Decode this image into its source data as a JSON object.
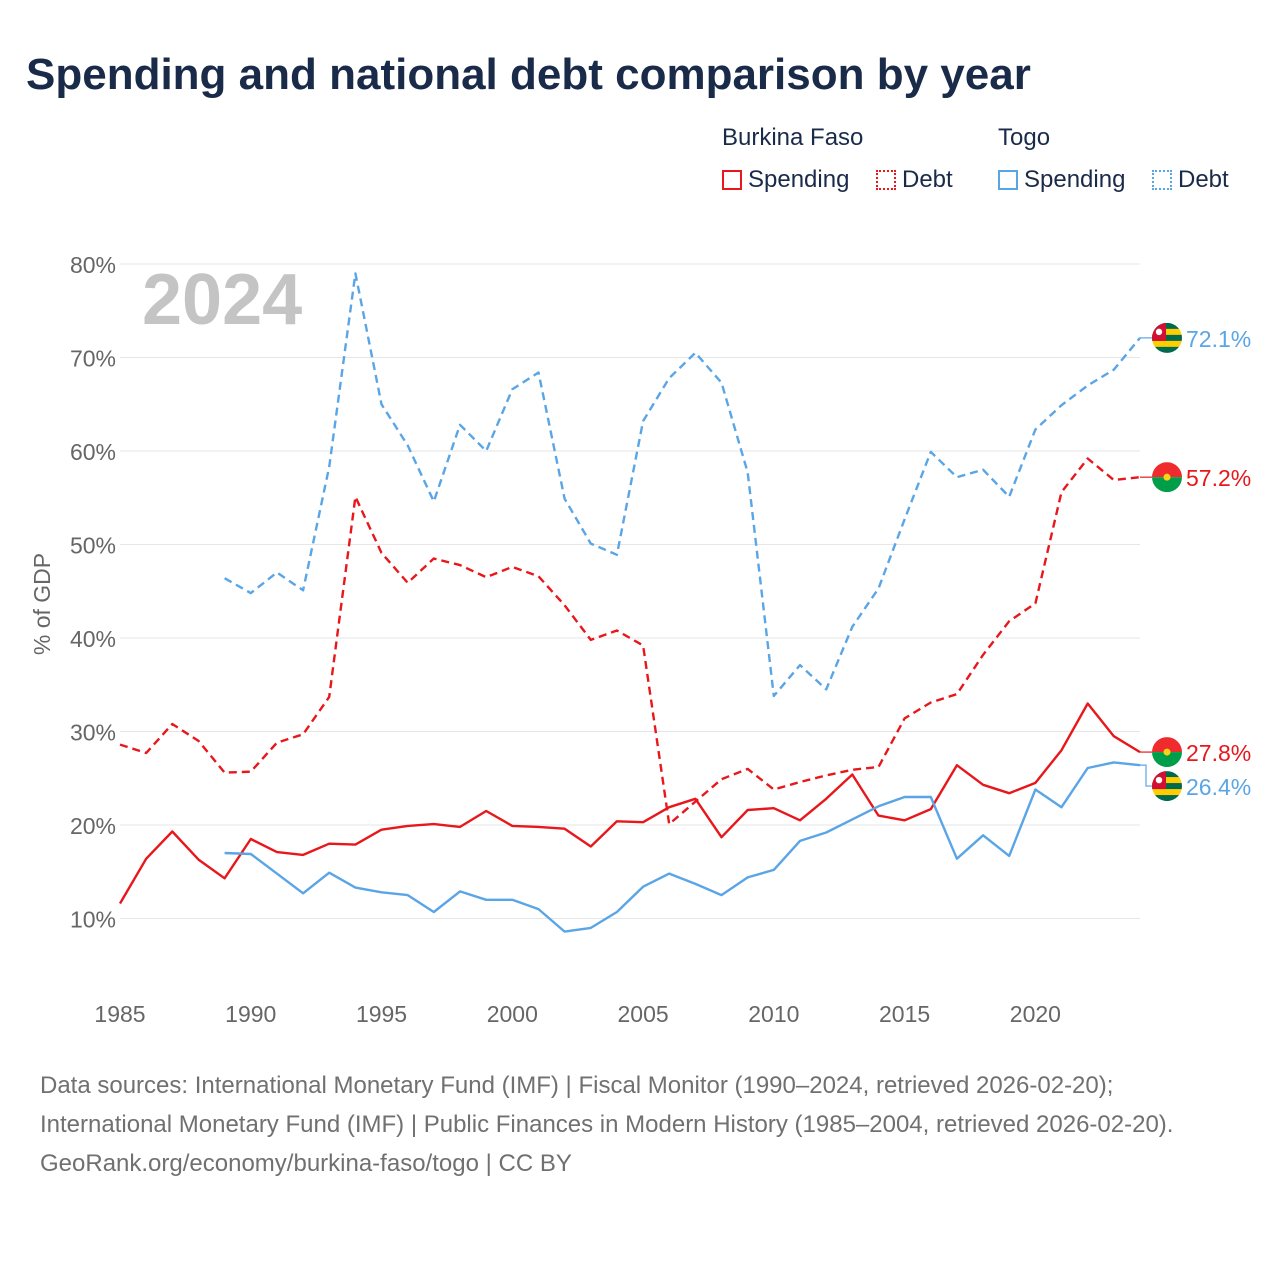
{
  "title": "Spending and national debt comparison by year",
  "legend": {
    "groups": [
      "Burkina Faso",
      "Togo"
    ],
    "bf_spending": "Spending",
    "bf_debt": "Debt",
    "tg_spending": "Spending",
    "tg_debt": "Debt"
  },
  "footer": {
    "sources": "Data sources: International Monetary Fund (IMF) | Fiscal Monitor (1990–2024, retrieved 2026-02-20); International Monetary Fund (IMF) | Public Finances in Modern History (1985–2004, retrieved 2026-02-20).",
    "credit": "GeoRank.org/economy/burkina-faso/togo | CC BY"
  },
  "colors": {
    "burkina": "#e8171b",
    "togo": "#5aa5e6",
    "grid": "#e6e6e6",
    "axis": "#666666"
  },
  "chart_data": {
    "type": "line",
    "ylabel": "% of GDP",
    "year_label": "2024",
    "ylim": [
      0,
      80
    ],
    "xlim": [
      1985,
      2024
    ],
    "x_ticks": [
      1985,
      1990,
      1995,
      2000,
      2005,
      2010,
      2015,
      2020
    ],
    "y_ticks": [
      10,
      20,
      30,
      40,
      50,
      60,
      70,
      80
    ],
    "series": [
      {
        "name": "Burkina Faso Debt",
        "country": "Burkina Faso",
        "color": "#e8171b",
        "style": "dashed",
        "x": [
          1985,
          1986,
          1987,
          1988,
          1989,
          1990,
          1991,
          1992,
          1993,
          1994,
          1995,
          1996,
          1997,
          1998,
          1999,
          2000,
          2001,
          2002,
          2003,
          2004,
          2005,
          2006,
          2007,
          2008,
          2009,
          2010,
          2011,
          2012,
          2013,
          2014,
          2015,
          2016,
          2017,
          2018,
          2019,
          2020,
          2021,
          2022,
          2023,
          2024
        ],
        "values": [
          28.6,
          27.7,
          30.8,
          29.0,
          25.6,
          25.7,
          28.8,
          29.7,
          33.7,
          55.1,
          49.1,
          45.9,
          48.5,
          47.8,
          46.5,
          47.6,
          46.6,
          43.5,
          39.8,
          40.8,
          39.2,
          20.1,
          22.5,
          24.9,
          26.0,
          23.8,
          24.6,
          25.3,
          25.9,
          26.2,
          31.4,
          33.1,
          34.0,
          38.2,
          41.8,
          43.7,
          55.6,
          59.2,
          56.9,
          57.2
        ],
        "end_label": "57.2%"
      },
      {
        "name": "Togo Debt",
        "country": "Togo",
        "color": "#5aa5e6",
        "style": "dashed",
        "x": [
          1989,
          1990,
          1991,
          1992,
          1993,
          1994,
          1995,
          1996,
          1997,
          1998,
          1999,
          2000,
          2001,
          2002,
          2003,
          2004,
          2005,
          2006,
          2007,
          2008,
          2009,
          2010,
          2011,
          2012,
          2013,
          2014,
          2015,
          2016,
          2017,
          2018,
          2019,
          2020,
          2021,
          2022,
          2023,
          2024
        ],
        "values": [
          46.4,
          44.8,
          47.0,
          45.1,
          58.3,
          79.0,
          65.0,
          60.6,
          54.6,
          62.8,
          60.0,
          66.6,
          68.4,
          54.9,
          50.1,
          48.9,
          63.2,
          67.8,
          70.5,
          67.3,
          57.7,
          33.8,
          37.1,
          34.5,
          41.2,
          45.3,
          52.7,
          59.9,
          57.2,
          58.0,
          55.1,
          62.3,
          64.9,
          67.0,
          68.7,
          72.1
        ],
        "end_label": "72.1%"
      },
      {
        "name": "Burkina Faso Spending",
        "country": "Burkina Faso",
        "color": "#e8171b",
        "style": "solid",
        "x": [
          1985,
          1986,
          1987,
          1988,
          1989,
          1990,
          1991,
          1992,
          1993,
          1994,
          1995,
          1996,
          1997,
          1998,
          1999,
          2000,
          2001,
          2002,
          2003,
          2004,
          2005,
          2006,
          2007,
          2008,
          2009,
          2010,
          2011,
          2012,
          2013,
          2014,
          2015,
          2016,
          2017,
          2018,
          2019,
          2020,
          2021,
          2022,
          2023,
          2024
        ],
        "values": [
          11.6,
          16.4,
          19.3,
          16.3,
          14.3,
          18.5,
          17.1,
          16.8,
          18.0,
          17.9,
          19.5,
          19.9,
          20.1,
          19.8,
          21.5,
          19.9,
          19.8,
          19.6,
          17.7,
          20.4,
          20.3,
          21.9,
          22.8,
          18.7,
          21.6,
          21.8,
          20.5,
          22.8,
          25.4,
          21.0,
          20.5,
          21.7,
          26.4,
          24.3,
          23.4,
          24.5,
          28.0,
          33.0,
          29.5,
          27.8
        ],
        "end_label": "27.8%"
      },
      {
        "name": "Togo Spending",
        "country": "Togo",
        "color": "#5aa5e6",
        "style": "solid",
        "x": [
          1989,
          1990,
          1991,
          1992,
          1993,
          1994,
          1995,
          1996,
          1997,
          1998,
          1999,
          2000,
          2001,
          2002,
          2003,
          2004,
          2005,
          2006,
          2007,
          2008,
          2009,
          2010,
          2011,
          2012,
          2013,
          2014,
          2015,
          2016,
          2017,
          2018,
          2019,
          2020,
          2021,
          2022,
          2023,
          2024
        ],
        "values": [
          17.0,
          16.9,
          14.8,
          12.7,
          14.9,
          13.3,
          12.8,
          12.5,
          10.7,
          12.9,
          12.0,
          12.0,
          11.0,
          8.6,
          9.0,
          10.7,
          13.4,
          14.8,
          13.7,
          12.5,
          14.4,
          15.2,
          18.3,
          19.2,
          20.6,
          22.0,
          23.0,
          23.0,
          16.4,
          18.9,
          16.7,
          23.8,
          21.9,
          26.1,
          26.7,
          26.4
        ],
        "end_label": "26.4%"
      }
    ]
  }
}
